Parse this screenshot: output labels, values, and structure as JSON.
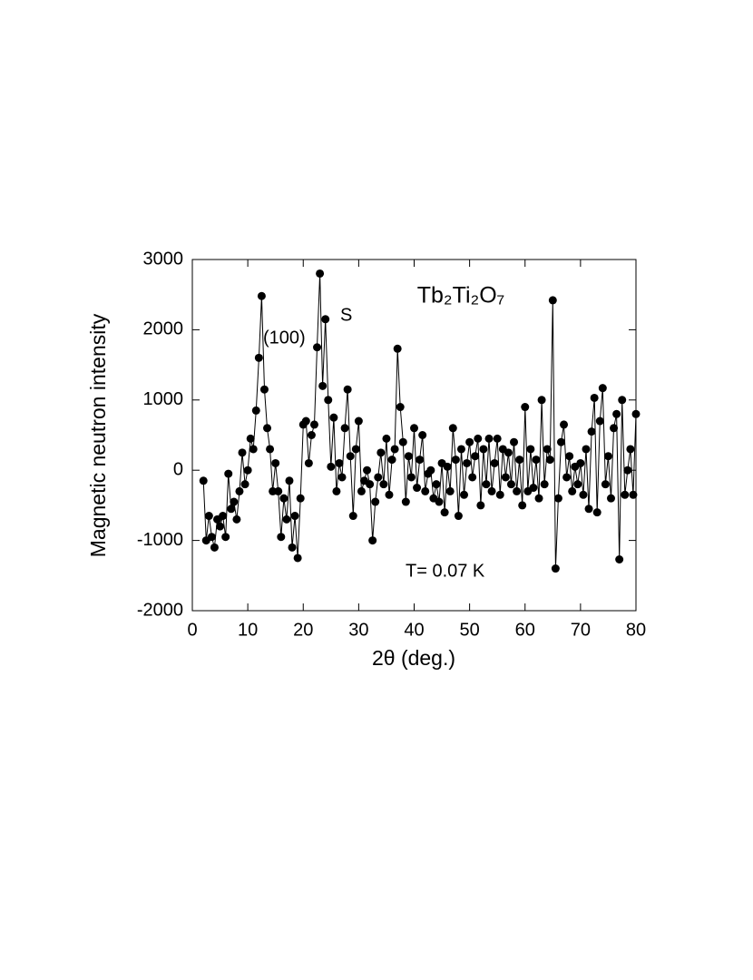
{
  "chart_data": {
    "type": "scatter",
    "title": "Tb₂Ti₂O₇",
    "xlabel": "2θ (deg.)",
    "ylabel": "Magnetic neutron intensity",
    "annotations": [
      "(100)",
      "S",
      "T= 0.07 K"
    ],
    "color": "#000000",
    "connected": true,
    "xlim": [
      0,
      80
    ],
    "xticks": [
      0,
      10,
      20,
      30,
      40,
      50,
      60,
      70,
      80
    ],
    "ylim": [
      -2000,
      3000
    ],
    "yticks": [
      -2000,
      -1000,
      0,
      1000,
      2000,
      3000
    ],
    "x": [
      2,
      2.5,
      3,
      3.5,
      4,
      4.5,
      5,
      5.5,
      6,
      6.5,
      7,
      7.5,
      8,
      8.5,
      9,
      9.5,
      10,
      10.5,
      11,
      11.5,
      12,
      12.5,
      13,
      13.5,
      14,
      14.5,
      15,
      15.5,
      16,
      16.5,
      17,
      17.5,
      18,
      18.5,
      19,
      19.5,
      20,
      20.5,
      21,
      21.5,
      22,
      22.5,
      23,
      23.5,
      24,
      24.5,
      25,
      25.5,
      26,
      26.5,
      27,
      27.5,
      28,
      28.5,
      29,
      29.5,
      30,
      30.5,
      31,
      31.5,
      32,
      32.5,
      33,
      33.5,
      34,
      34.5,
      35,
      35.5,
      36,
      36.5,
      37,
      37.5,
      38,
      38.5,
      39,
      39.5,
      40,
      40.5,
      41,
      41.5,
      42,
      42.5,
      43,
      43.5,
      44,
      44.5,
      45,
      45.5,
      46,
      46.5,
      47,
      47.5,
      48,
      48.5,
      49,
      49.5,
      50,
      50.5,
      51,
      51.5,
      52,
      52.5,
      53,
      53.5,
      54,
      54.5,
      55,
      55.5,
      56,
      56.5,
      57,
      57.5,
      58,
      58.5,
      59,
      59.5,
      60,
      60.5,
      61,
      61.5,
      62,
      62.5,
      63,
      63.5,
      64,
      64.5,
      65,
      65.5,
      66,
      66.5,
      67,
      67.5,
      68,
      68.5,
      69,
      69.5,
      70,
      70.5,
      71,
      71.5,
      72,
      72.5,
      73,
      73.5,
      74,
      74.5,
      75,
      75.5,
      76,
      76.5,
      77,
      77.5,
      78,
      78.5,
      79,
      79.5,
      80
    ],
    "values": [
      -150,
      -1000,
      -650,
      -950,
      -1100,
      -700,
      -800,
      -650,
      -950,
      -50,
      -550,
      -450,
      -700,
      -300,
      250,
      -200,
      0,
      450,
      300,
      850,
      1600,
      2480,
      1150,
      600,
      300,
      -300,
      100,
      -300,
      -950,
      -400,
      -700,
      -150,
      -1100,
      -650,
      -1250,
      -400,
      650,
      700,
      100,
      500,
      650,
      1750,
      2800,
      1200,
      2150,
      1000,
      50,
      750,
      -300,
      100,
      -100,
      600,
      1150,
      200,
      -650,
      300,
      700,
      -300,
      -150,
      0,
      -200,
      -1000,
      -450,
      -100,
      250,
      -200,
      450,
      -350,
      150,
      300,
      1730,
      900,
      400,
      -450,
      200,
      -100,
      600,
      -250,
      150,
      500,
      -300,
      -50,
      0,
      -400,
      -200,
      -450,
      100,
      -600,
      50,
      -300,
      600,
      150,
      -650,
      300,
      -350,
      100,
      400,
      -100,
      200,
      450,
      -500,
      300,
      -200,
      450,
      -300,
      100,
      450,
      -350,
      300,
      -100,
      250,
      -200,
      400,
      -300,
      150,
      -500,
      900,
      -300,
      300,
      -250,
      150,
      -400,
      1000,
      -200,
      300,
      150,
      2420,
      -1400,
      -400,
      400,
      650,
      -100,
      200,
      -300,
      50,
      -200,
      100,
      -350,
      300,
      -550,
      550,
      1030,
      -600,
      700,
      1170,
      -200,
      200,
      -400,
      600,
      800,
      -1270,
      1000,
      -350,
      0,
      300,
      -350,
      800
    ]
  }
}
